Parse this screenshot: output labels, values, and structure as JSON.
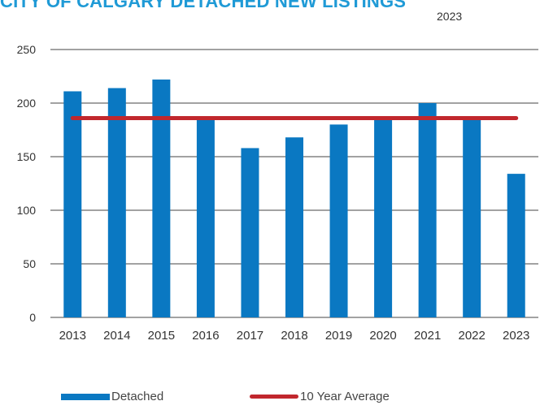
{
  "chart_data": {
    "type": "bar",
    "title": "CITY OF CALGARY DETACHED NEW LISTINGS",
    "subtitle": "2023",
    "xlabel": "",
    "ylabel": "",
    "categories": [
      "2013",
      "2014",
      "2015",
      "2016",
      "2017",
      "2018",
      "2019",
      "2020",
      "2021",
      "2022",
      "2023"
    ],
    "series": [
      {
        "name": "Detached",
        "type": "bar",
        "color": "#0a78c2",
        "values": [
          211,
          214,
          222,
          186,
          158,
          168,
          180,
          186,
          200,
          186,
          134
        ]
      },
      {
        "name": "10 Year Average",
        "type": "line",
        "color": "#c1272d",
        "values": [
          186,
          186,
          186,
          186,
          186,
          186,
          186,
          186,
          186,
          186,
          186
        ]
      }
    ],
    "ylim": [
      0,
      250
    ],
    "yticks": [
      0,
      50,
      100,
      150,
      200,
      250
    ],
    "grid": true,
    "legend": "bottom"
  }
}
